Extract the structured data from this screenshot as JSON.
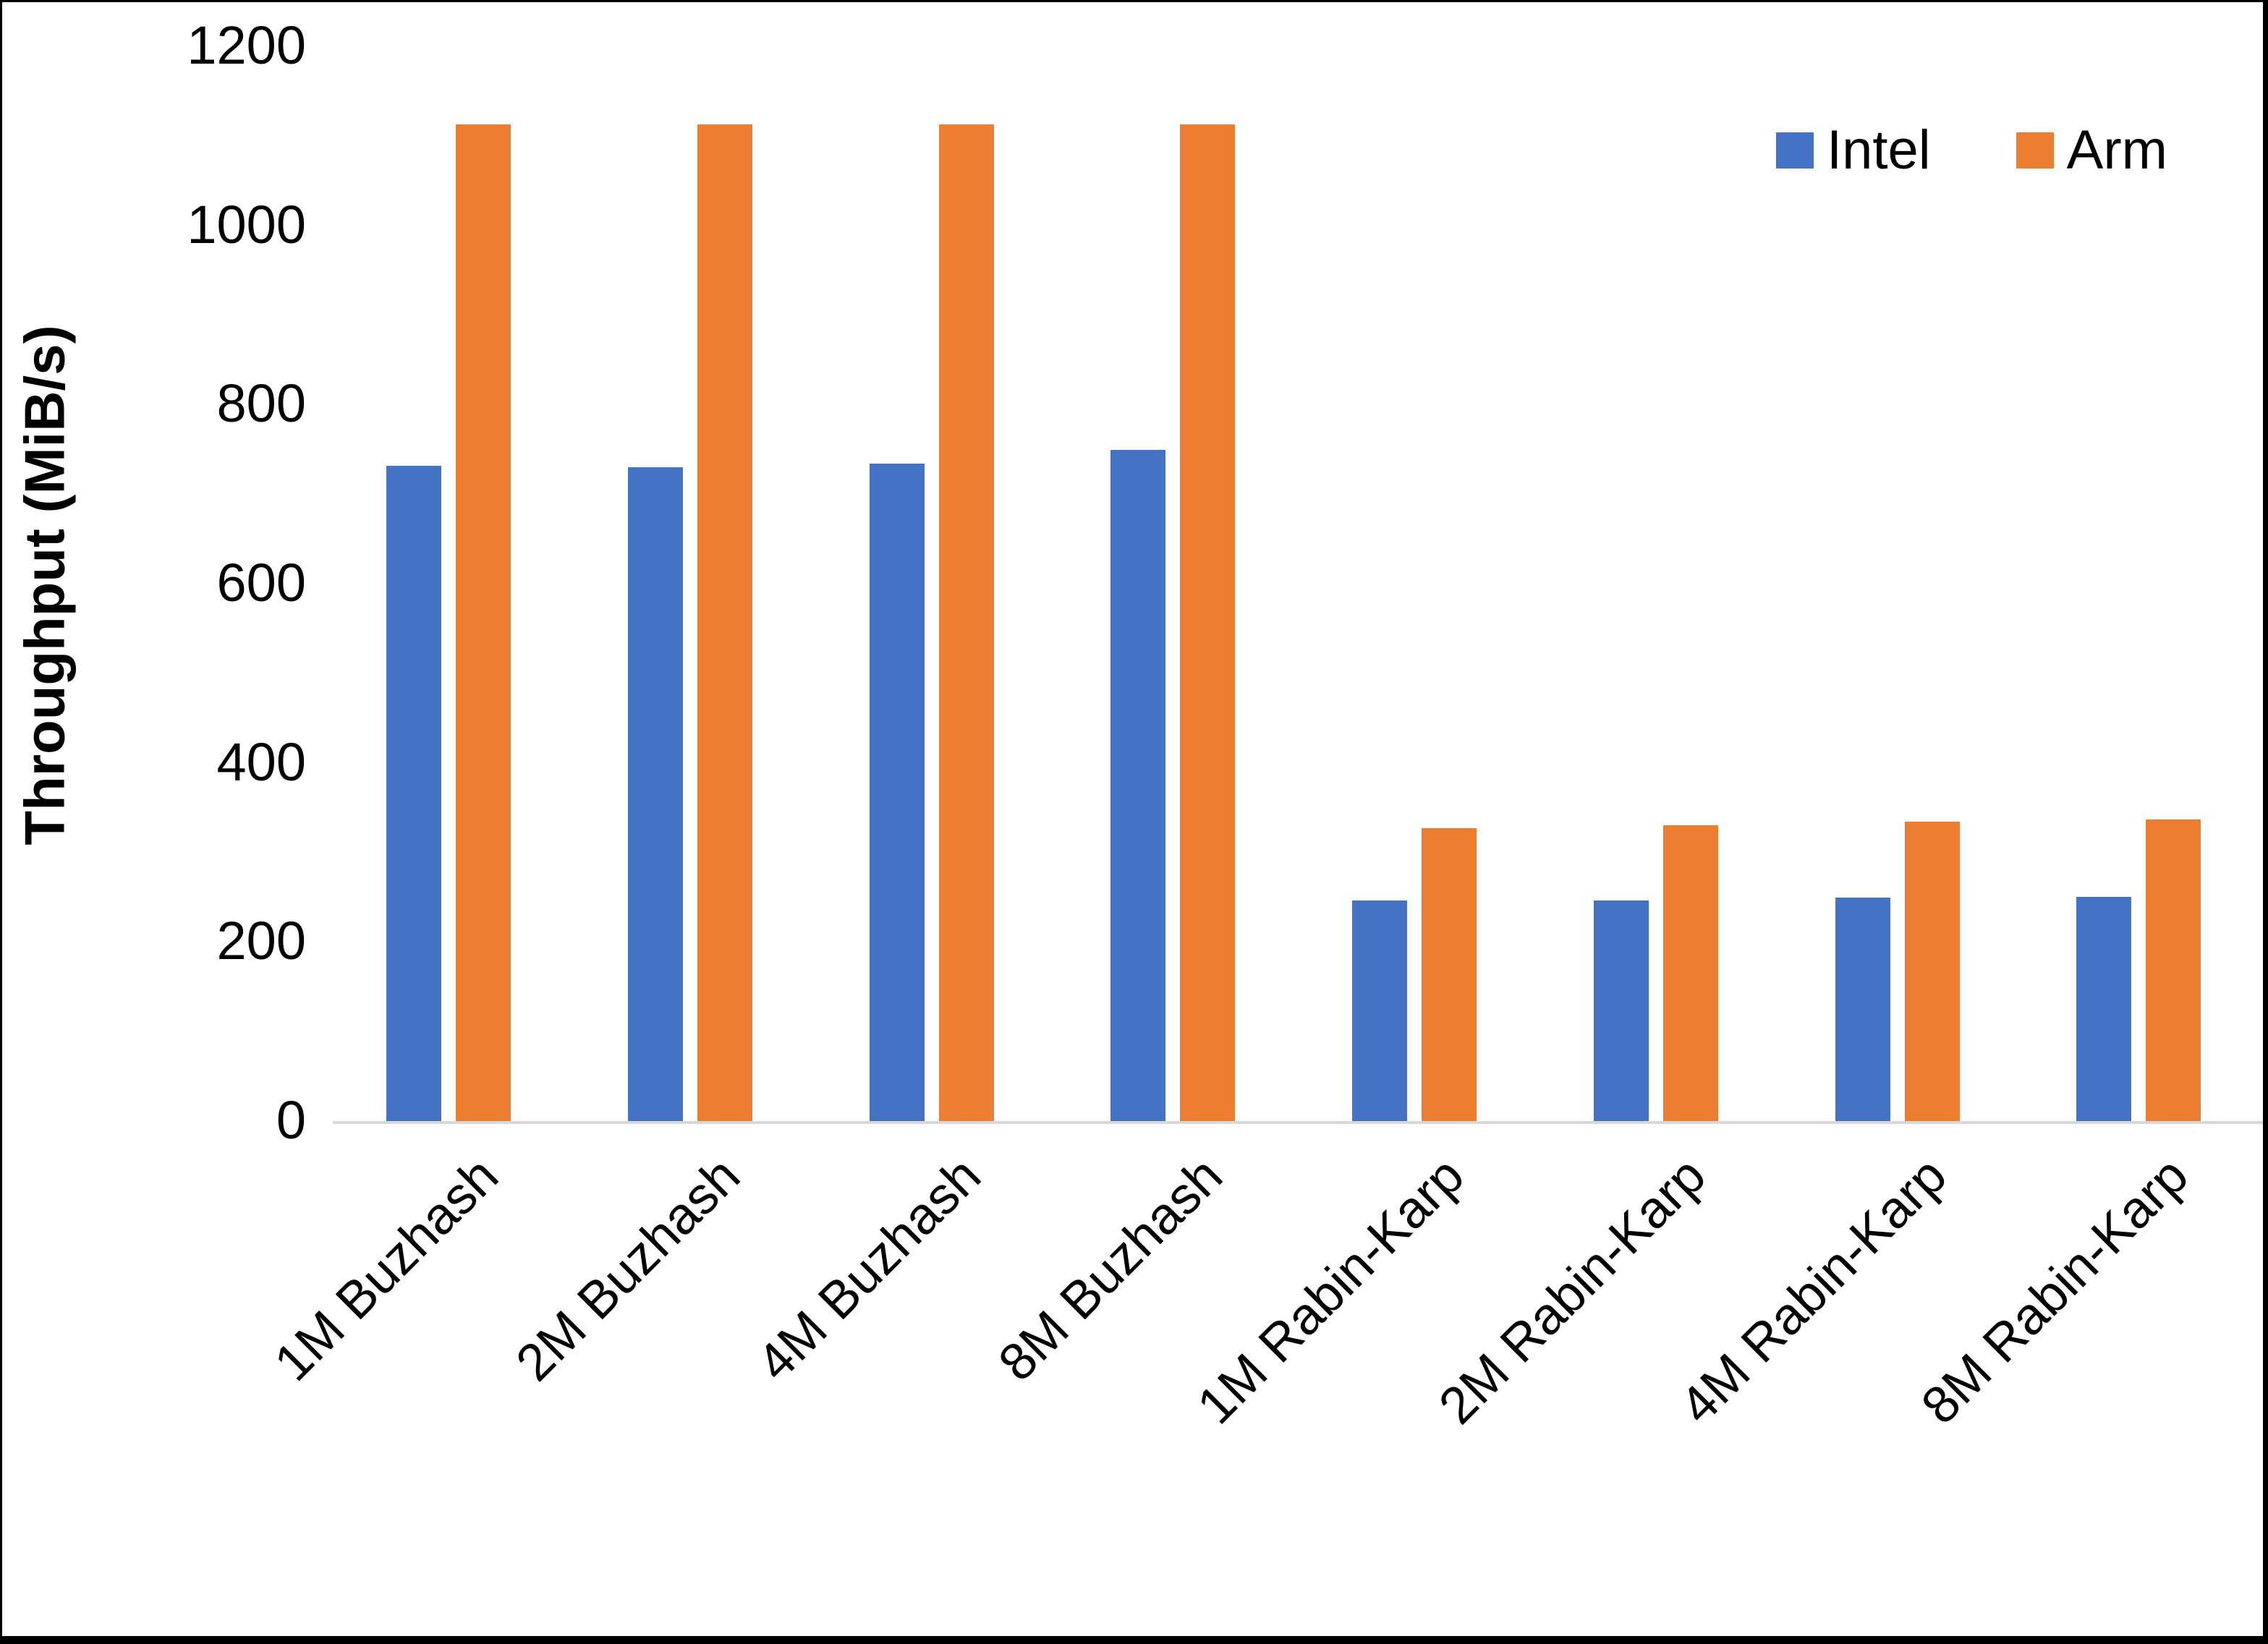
{
  "frame": {
    "border_color": "#000000"
  },
  "axis": {
    "baseline_color": "#d9d9d9",
    "text_color": "#000000"
  },
  "legend": {
    "position": "top-right",
    "items": [
      {
        "label": "Intel",
        "color": "#4472C4"
      },
      {
        "label": "Arm",
        "color": "#ED7D31"
      }
    ]
  },
  "chart_data": {
    "type": "bar",
    "title": "",
    "xlabel": "",
    "ylabel": "Throughput (MiB/s)",
    "ylim": [
      0,
      1200
    ],
    "yticks": [
      0,
      200,
      400,
      600,
      800,
      1000,
      1200
    ],
    "grid": false,
    "legend_position": "top-right",
    "categories": [
      "1M Buzhash",
      "2M Buzhash",
      "4M Buzhash",
      "8M Buzhash",
      "1M Rabin-Karp",
      "2M Rabin-Karp",
      "4M Rabin-Karp",
      "8M Rabin-Karp"
    ],
    "series": [
      {
        "name": "Intel",
        "color": "#4472C4",
        "values": [
          733,
          732,
          736,
          751,
          248,
          248,
          251,
          252
        ]
      },
      {
        "name": "Arm",
        "color": "#ED7D31",
        "values": [
          1114,
          1114,
          1114,
          1114,
          329,
          332,
          336,
          338
        ]
      }
    ]
  }
}
